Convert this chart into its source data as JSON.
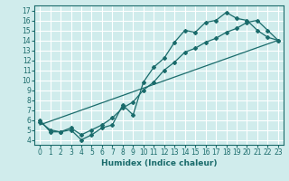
{
  "xlabel": "Humidex (Indice chaleur)",
  "bg_color": "#d0ecec",
  "line_color": "#1a6b6b",
  "grid_color": "#ffffff",
  "xlim": [
    -0.5,
    23.5
  ],
  "ylim": [
    3.5,
    17.5
  ],
  "xticks": [
    0,
    1,
    2,
    3,
    4,
    5,
    6,
    7,
    8,
    9,
    10,
    11,
    12,
    13,
    14,
    15,
    16,
    17,
    18,
    19,
    20,
    21,
    22,
    23
  ],
  "yticks": [
    4,
    5,
    6,
    7,
    8,
    9,
    10,
    11,
    12,
    13,
    14,
    15,
    16,
    17
  ],
  "line1_x": [
    0,
    1,
    2,
    3,
    4,
    5,
    6,
    7,
    8,
    9,
    10,
    11,
    12,
    13,
    14,
    15,
    16,
    17,
    18,
    19,
    20,
    21,
    22,
    23
  ],
  "line1_y": [
    6.0,
    4.8,
    4.8,
    5.0,
    4.0,
    4.5,
    5.2,
    5.5,
    7.5,
    6.5,
    9.8,
    11.3,
    12.2,
    13.8,
    15.0,
    14.8,
    15.8,
    16.0,
    16.8,
    16.2,
    16.0,
    15.0,
    14.3,
    14.0
  ],
  "line2_x": [
    0,
    1,
    2,
    3,
    4,
    5,
    6,
    7,
    8,
    9,
    10,
    11,
    12,
    13,
    14,
    15,
    16,
    17,
    18,
    19,
    20,
    21,
    22,
    23
  ],
  "line2_y": [
    5.8,
    5.0,
    4.8,
    5.2,
    4.5,
    5.0,
    5.5,
    6.2,
    7.2,
    7.8,
    9.0,
    9.8,
    11.0,
    11.8,
    12.8,
    13.2,
    13.8,
    14.2,
    14.8,
    15.2,
    15.8,
    16.0,
    15.0,
    14.0
  ],
  "line3_x": [
    0,
    23
  ],
  "line3_y": [
    5.5,
    14.0
  ]
}
